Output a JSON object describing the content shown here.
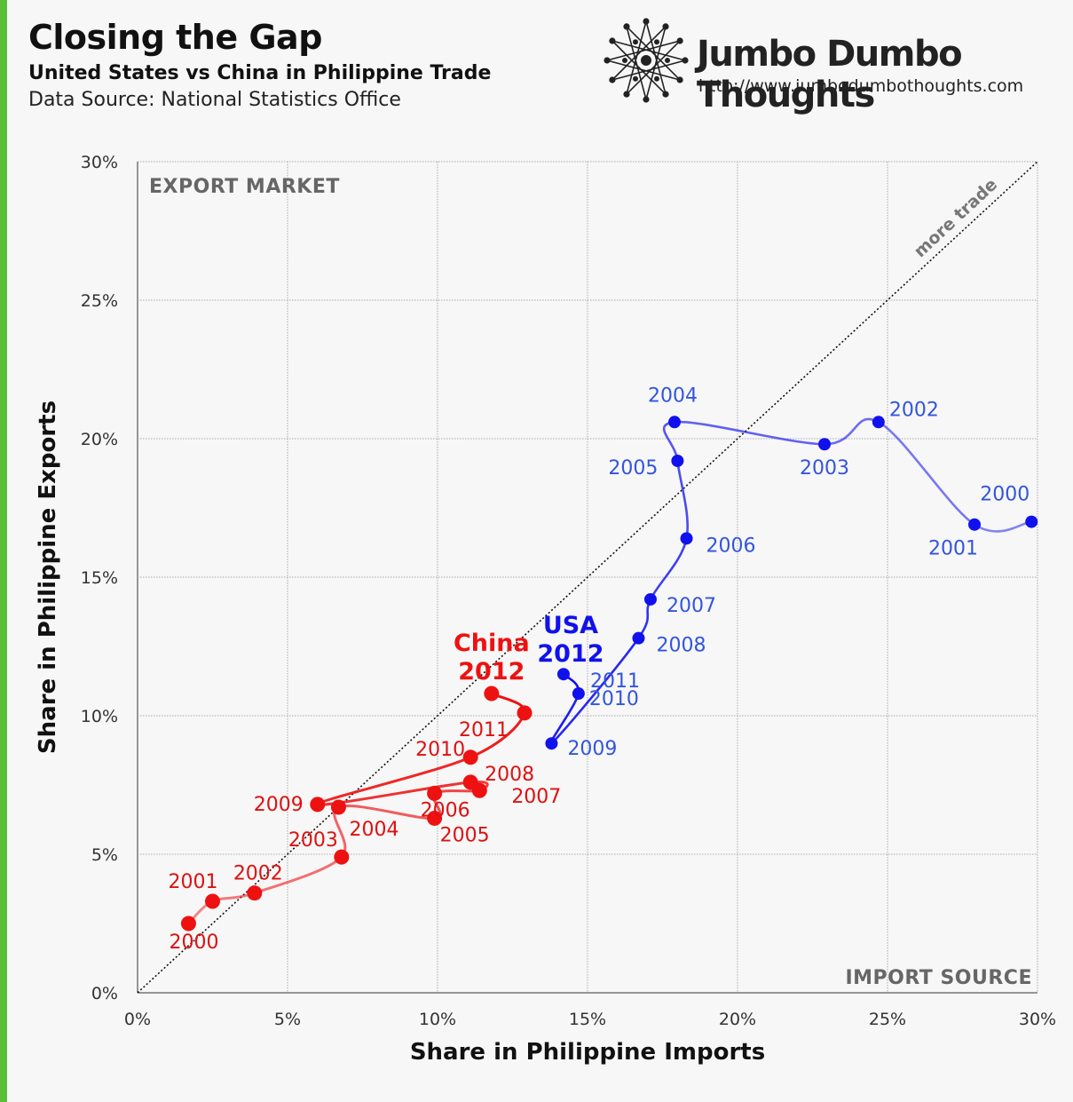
{
  "header": {
    "title": "Closing the Gap",
    "subtitle": "United States vs China in Philippine Trade",
    "source": "Data Source: National Statistics Office"
  },
  "brand": {
    "name": "Jumbo Dumbo Thoughts",
    "url": "http://www.jumbodumbothoughts.com",
    "logo_icon": "star-polygon-logo-icon"
  },
  "colors": {
    "accent_bar": "#5bbf3a",
    "china": "#ee1111",
    "china_label": "#dd1111",
    "usa": "#1111ee",
    "usa_label": "#3355dd",
    "grid": "#aaaaaa"
  },
  "chart_data": {
    "type": "scatter",
    "connected": true,
    "xlabel": "Share in Philippine Imports",
    "ylabel": "Share in Philippine Exports",
    "xlim": [
      0,
      30
    ],
    "ylim": [
      0,
      30
    ],
    "x_ticks": [
      0,
      5,
      10,
      15,
      20,
      25,
      30
    ],
    "y_ticks": [
      0,
      5,
      10,
      15,
      20,
      25,
      30
    ],
    "x_tick_labels": [
      "0%",
      "5%",
      "10%",
      "15%",
      "20%",
      "25%",
      "30%"
    ],
    "y_tick_labels": [
      "0%",
      "5%",
      "10%",
      "15%",
      "20%",
      "25%",
      "30%"
    ],
    "grid": true,
    "corner_top_left": "EXPORT MARKET",
    "corner_bottom_right": "IMPORT SOURCE",
    "diagonal_label": "more trade",
    "series": [
      {
        "name": "China",
        "final_label": "2012",
        "points": [
          {
            "year": "2000",
            "x": 1.7,
            "y": 2.5
          },
          {
            "year": "2001",
            "x": 2.5,
            "y": 3.3
          },
          {
            "year": "2002",
            "x": 3.9,
            "y": 3.6
          },
          {
            "year": "2003",
            "x": 6.8,
            "y": 4.9
          },
          {
            "year": "2004",
            "x": 6.7,
            "y": 6.7
          },
          {
            "year": "2005",
            "x": 9.9,
            "y": 6.3
          },
          {
            "year": "2006",
            "x": 9.9,
            "y": 7.2
          },
          {
            "year": "2007",
            "x": 11.4,
            "y": 7.3
          },
          {
            "year": "2008",
            "x": 11.1,
            "y": 7.6
          },
          {
            "year": "2009",
            "x": 6.0,
            "y": 6.8
          },
          {
            "year": "2010",
            "x": 11.1,
            "y": 8.5
          },
          {
            "year": "2011",
            "x": 12.9,
            "y": 10.1
          },
          {
            "year": "2012",
            "x": 11.8,
            "y": 10.8
          }
        ]
      },
      {
        "name": "USA",
        "final_label": "2012",
        "points": [
          {
            "year": "2000",
            "x": 29.8,
            "y": 17.0
          },
          {
            "year": "2001",
            "x": 27.9,
            "y": 16.9
          },
          {
            "year": "2002",
            "x": 24.7,
            "y": 20.6
          },
          {
            "year": "2003",
            "x": 22.9,
            "y": 19.8
          },
          {
            "year": "2004",
            "x": 17.9,
            "y": 20.6
          },
          {
            "year": "2005",
            "x": 18.0,
            "y": 19.2
          },
          {
            "year": "2006",
            "x": 18.3,
            "y": 16.4
          },
          {
            "year": "2007",
            "x": 17.1,
            "y": 14.2
          },
          {
            "year": "2008",
            "x": 16.7,
            "y": 12.8
          },
          {
            "year": "2009",
            "x": 13.8,
            "y": 9.0
          },
          {
            "year": "2010",
            "x": 14.7,
            "y": 10.8
          },
          {
            "year": "2011",
            "x": 14.2,
            "y": 11.5
          }
        ]
      }
    ]
  }
}
